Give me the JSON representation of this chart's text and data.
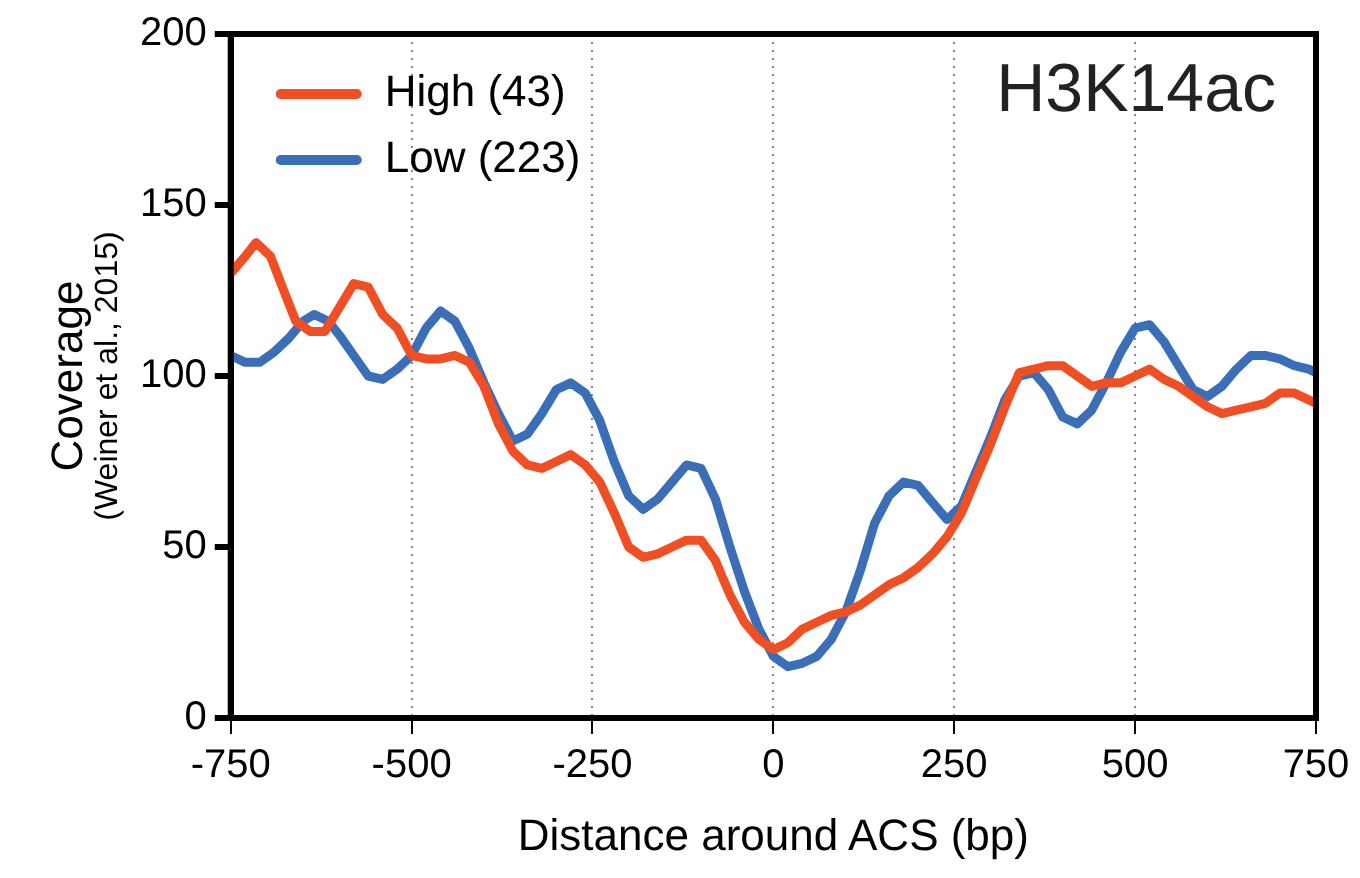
{
  "chart_data": {
    "type": "line",
    "title": "H3K14ac",
    "xlabel": "Distance around ACS (bp)",
    "ylabel": "Coverage\n(Weiner et al., 2015)",
    "xlim": [
      -750,
      750
    ],
    "xticks": [
      -750,
      -500,
      -250,
      0,
      250,
      500,
      750
    ],
    "ylim": [
      0,
      200
    ],
    "yticks": [
      0,
      50,
      100,
      150,
      200
    ],
    "grid": "x",
    "legend": "top left",
    "marker": "none",
    "line_style": "solid",
    "series": [
      {
        "name": "High (43)",
        "color": "#f04e23",
        "x": [
          -750,
          -730,
          -715,
          -695,
          -675,
          -660,
          -640,
          -620,
          -600,
          -580,
          -560,
          -540,
          -520,
          -500,
          -480,
          -460,
          -440,
          -420,
          -400,
          -380,
          -360,
          -340,
          -320,
          -300,
          -280,
          -260,
          -240,
          -220,
          -200,
          -180,
          -160,
          -140,
          -120,
          -100,
          -80,
          -60,
          -40,
          -20,
          0,
          20,
          40,
          60,
          80,
          100,
          120,
          140,
          160,
          180,
          200,
          220,
          240,
          260,
          280,
          300,
          320,
          340,
          360,
          380,
          400,
          420,
          440,
          460,
          480,
          500,
          520,
          540,
          560,
          580,
          600,
          620,
          640,
          660,
          680,
          700,
          720,
          740,
          750
        ],
        "values": [
          130,
          135,
          139,
          135,
          124,
          116,
          113,
          113,
          120,
          127,
          126,
          118,
          114,
          106,
          105,
          105,
          106,
          104,
          97,
          86,
          78,
          74,
          73,
          75,
          77,
          74,
          69,
          60,
          50,
          47,
          48,
          50,
          52,
          52,
          46,
          36,
          28,
          23,
          20,
          22,
          26,
          28,
          30,
          31,
          33,
          36,
          39,
          41,
          44,
          48,
          53,
          60,
          70,
          80,
          91,
          101,
          102,
          103,
          103,
          100,
          97,
          98,
          98,
          100,
          102,
          99,
          97,
          94,
          91,
          89,
          90,
          91,
          92,
          95,
          95,
          93,
          92
        ]
      },
      {
        "name": "Low (223)",
        "color": "#3a6fb8",
        "x": [
          -750,
          -730,
          -710,
          -690,
          -670,
          -650,
          -635,
          -615,
          -600,
          -580,
          -560,
          -540,
          -520,
          -500,
          -480,
          -460,
          -440,
          -420,
          -400,
          -380,
          -360,
          -340,
          -320,
          -300,
          -280,
          -260,
          -240,
          -220,
          -200,
          -180,
          -160,
          -140,
          -120,
          -100,
          -80,
          -60,
          -40,
          -20,
          0,
          20,
          40,
          60,
          80,
          100,
          120,
          140,
          160,
          180,
          200,
          220,
          240,
          260,
          280,
          300,
          320,
          340,
          360,
          380,
          400,
          420,
          440,
          460,
          480,
          500,
          520,
          540,
          560,
          580,
          600,
          620,
          640,
          660,
          680,
          700,
          720,
          740,
          750
        ],
        "values": [
          106,
          104,
          104,
          107,
          111,
          116,
          118,
          116,
          112,
          106,
          100,
          99,
          102,
          106,
          114,
          119,
          116,
          108,
          98,
          89,
          81,
          83,
          89,
          96,
          98,
          95,
          87,
          75,
          65,
          61,
          64,
          69,
          74,
          73,
          64,
          50,
          37,
          26,
          18,
          15,
          16,
          18,
          23,
          31,
          43,
          57,
          65,
          69,
          68,
          63,
          58,
          62,
          72,
          82,
          93,
          100,
          101,
          96,
          88,
          86,
          90,
          98,
          107,
          114,
          115,
          110,
          103,
          96,
          94,
          97,
          102,
          106,
          106,
          105,
          103,
          102,
          101
        ]
      }
    ]
  }
}
